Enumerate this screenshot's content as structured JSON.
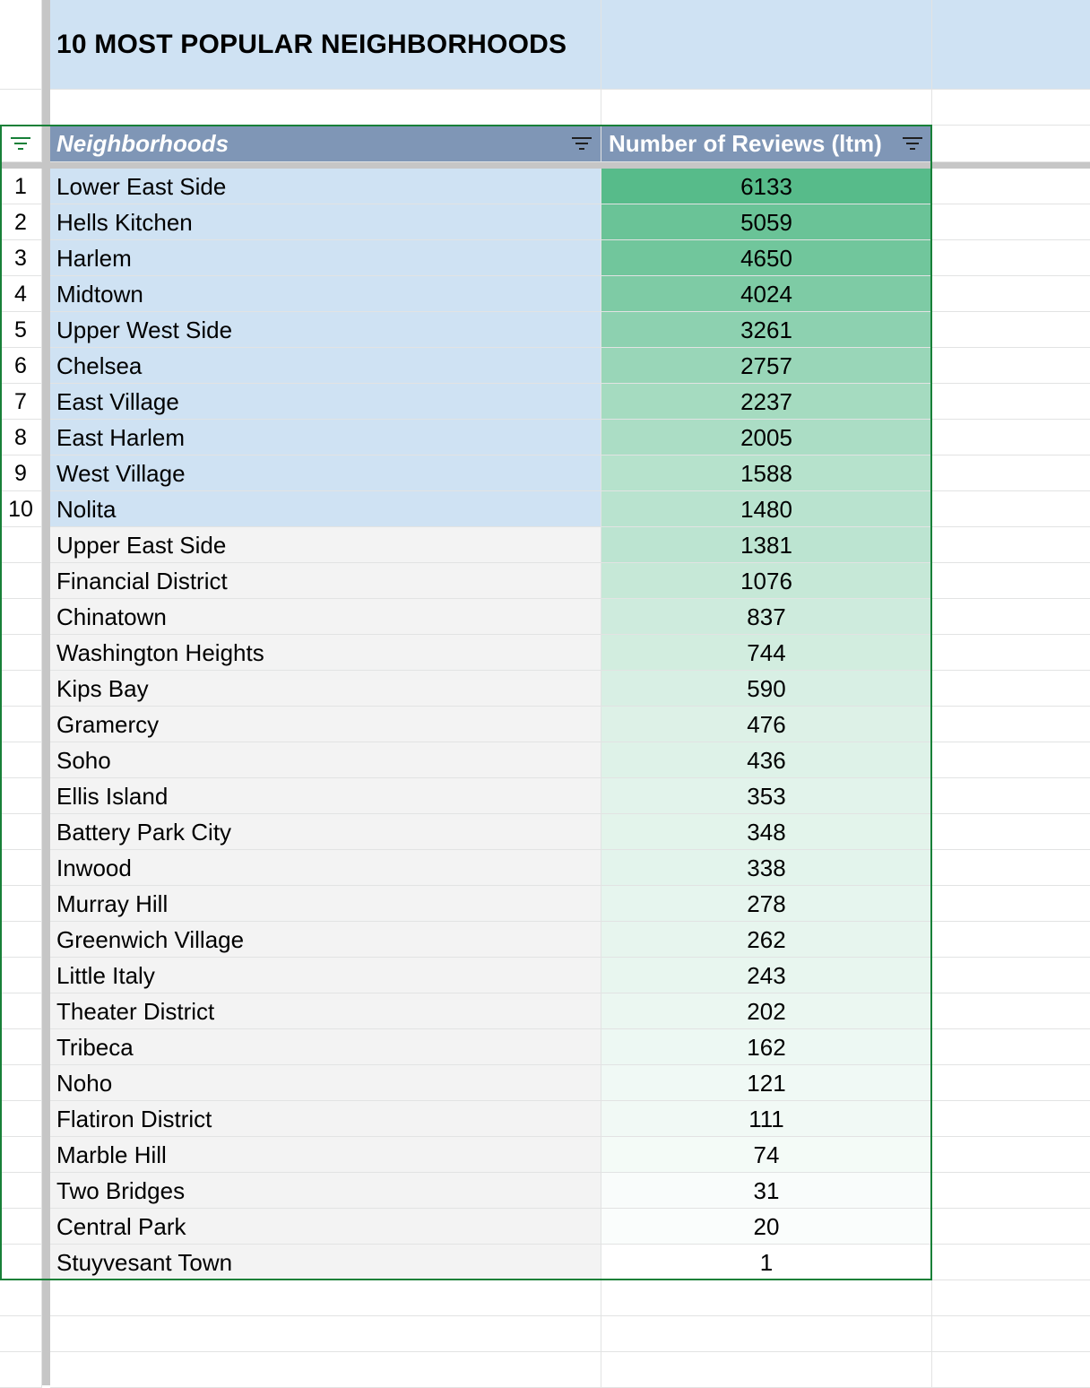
{
  "sheet": {
    "title": "10 MOST POPULAR NEIGHBORHOODS",
    "headers": {
      "col1": "Neighborhoods",
      "col2": "Number of Reviews (ltm)"
    },
    "icons": {
      "header_filter": "filter-icon",
      "row_header_filter": "filter-icon"
    },
    "colors": {
      "title_fill": "#cfe2f3",
      "header_fill": "#7f96b6",
      "top10_fill": "#cfe2f3",
      "other_fill": "#f3f3f3",
      "scale_max": "#57bb8a",
      "scale_min": "#ffffff",
      "table_border": "#188038"
    },
    "rows": [
      {
        "rank": "1",
        "name": "Lower East Side",
        "reviews": "6133"
      },
      {
        "rank": "2",
        "name": "Hells Kitchen",
        "reviews": "5059"
      },
      {
        "rank": "3",
        "name": "Harlem",
        "reviews": "4650"
      },
      {
        "rank": "4",
        "name": "Midtown",
        "reviews": "4024"
      },
      {
        "rank": "5",
        "name": "Upper West Side",
        "reviews": "3261"
      },
      {
        "rank": "6",
        "name": "Chelsea",
        "reviews": "2757"
      },
      {
        "rank": "7",
        "name": "East Village",
        "reviews": "2237"
      },
      {
        "rank": "8",
        "name": "East Harlem",
        "reviews": "2005"
      },
      {
        "rank": "9",
        "name": "West Village",
        "reviews": "1588"
      },
      {
        "rank": "10",
        "name": "Nolita",
        "reviews": "1480"
      },
      {
        "rank": "",
        "name": "Upper East Side",
        "reviews": "1381"
      },
      {
        "rank": "",
        "name": "Financial District",
        "reviews": "1076"
      },
      {
        "rank": "",
        "name": "Chinatown",
        "reviews": "837"
      },
      {
        "rank": "",
        "name": "Washington Heights",
        "reviews": "744"
      },
      {
        "rank": "",
        "name": "Kips Bay",
        "reviews": "590"
      },
      {
        "rank": "",
        "name": "Gramercy",
        "reviews": "476"
      },
      {
        "rank": "",
        "name": "Soho",
        "reviews": "436"
      },
      {
        "rank": "",
        "name": "Ellis Island",
        "reviews": "353"
      },
      {
        "rank": "",
        "name": "Battery Park City",
        "reviews": "348"
      },
      {
        "rank": "",
        "name": "Inwood",
        "reviews": "338"
      },
      {
        "rank": "",
        "name": "Murray Hill",
        "reviews": "278"
      },
      {
        "rank": "",
        "name": "Greenwich Village",
        "reviews": "262"
      },
      {
        "rank": "",
        "name": "Little Italy",
        "reviews": "243"
      },
      {
        "rank": "",
        "name": "Theater District",
        "reviews": "202"
      },
      {
        "rank": "",
        "name": "Tribeca",
        "reviews": "162"
      },
      {
        "rank": "",
        "name": "Noho",
        "reviews": "121"
      },
      {
        "rank": "",
        "name": "Flatiron District",
        "reviews": "111"
      },
      {
        "rank": "",
        "name": "Marble Hill",
        "reviews": "74"
      },
      {
        "rank": "",
        "name": "Two Bridges",
        "reviews": "31"
      },
      {
        "rank": "",
        "name": "Central Park",
        "reviews": "20"
      },
      {
        "rank": "",
        "name": "Stuyvesant Town",
        "reviews": "1"
      }
    ]
  }
}
